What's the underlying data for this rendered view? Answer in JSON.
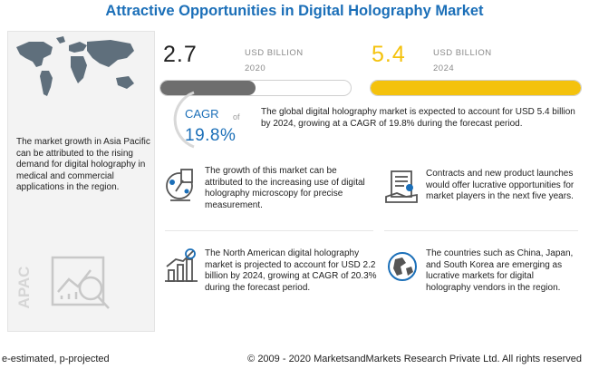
{
  "header": {
    "title": "Attractive Opportunities in Digital Holography Market"
  },
  "left_panel": {
    "region_text": "The market growth in Asia Pacific can be attributed to the rising demand for digital holography in medical and commercial applications in the region.",
    "apac_label": "APAC",
    "icons": [
      "world-map-icon",
      "analysis-chart-icon"
    ]
  },
  "chart_data": {
    "type": "bar",
    "categories": [
      "2020",
      "2024"
    ],
    "values": [
      2.7,
      5.4
    ],
    "unit": "USD BILLION",
    "ylim": [
      0,
      5.4
    ],
    "colors": [
      "#6e6e6e",
      "#f4c20d"
    ]
  },
  "market": {
    "value_2020": "2.7",
    "unit_2020": "USD BILLION",
    "year_2020": "2020",
    "value_2024": "5.4",
    "unit_2024": "USD BILLION",
    "year_2024": "2024",
    "cagr_label": "CAGR",
    "cagr_of": "of",
    "cagr_value": "19.8%",
    "summary": "The global digital holography market is expected to account for USD 5.4 billion by 2024, growing at a CAGR of 19.8% during the forecast period."
  },
  "points": [
    {
      "icon": "microscope-icon",
      "text": "The growth of this market can be attributed to the increasing use of digital holography microscopy for precise measurement."
    },
    {
      "icon": "contract-money-icon",
      "text": "Contracts and new product launches would offer lucrative opportunities for market players in the next five years."
    },
    {
      "icon": "growth-chart-icon",
      "text": "The North American digital holography market is projected to account for USD 2.2 billion by 2024, growing at CAGR of 20.3% during the forecast period."
    },
    {
      "icon": "globe-icon",
      "text": "The countries such as China, Japan, and South Korea are emerging as lucrative markets for digital holography vendors in the region."
    }
  ],
  "footer": {
    "note": "e-estimated, p-projected",
    "copyright": "© 2009 - 2020 MarketsandMarkets Research Private Ltd. All rights reserved"
  },
  "colors": {
    "brand_blue": "#1b6fb8",
    "bar_2020": "#6e6e6e",
    "bar_2024": "#f4c20d"
  }
}
